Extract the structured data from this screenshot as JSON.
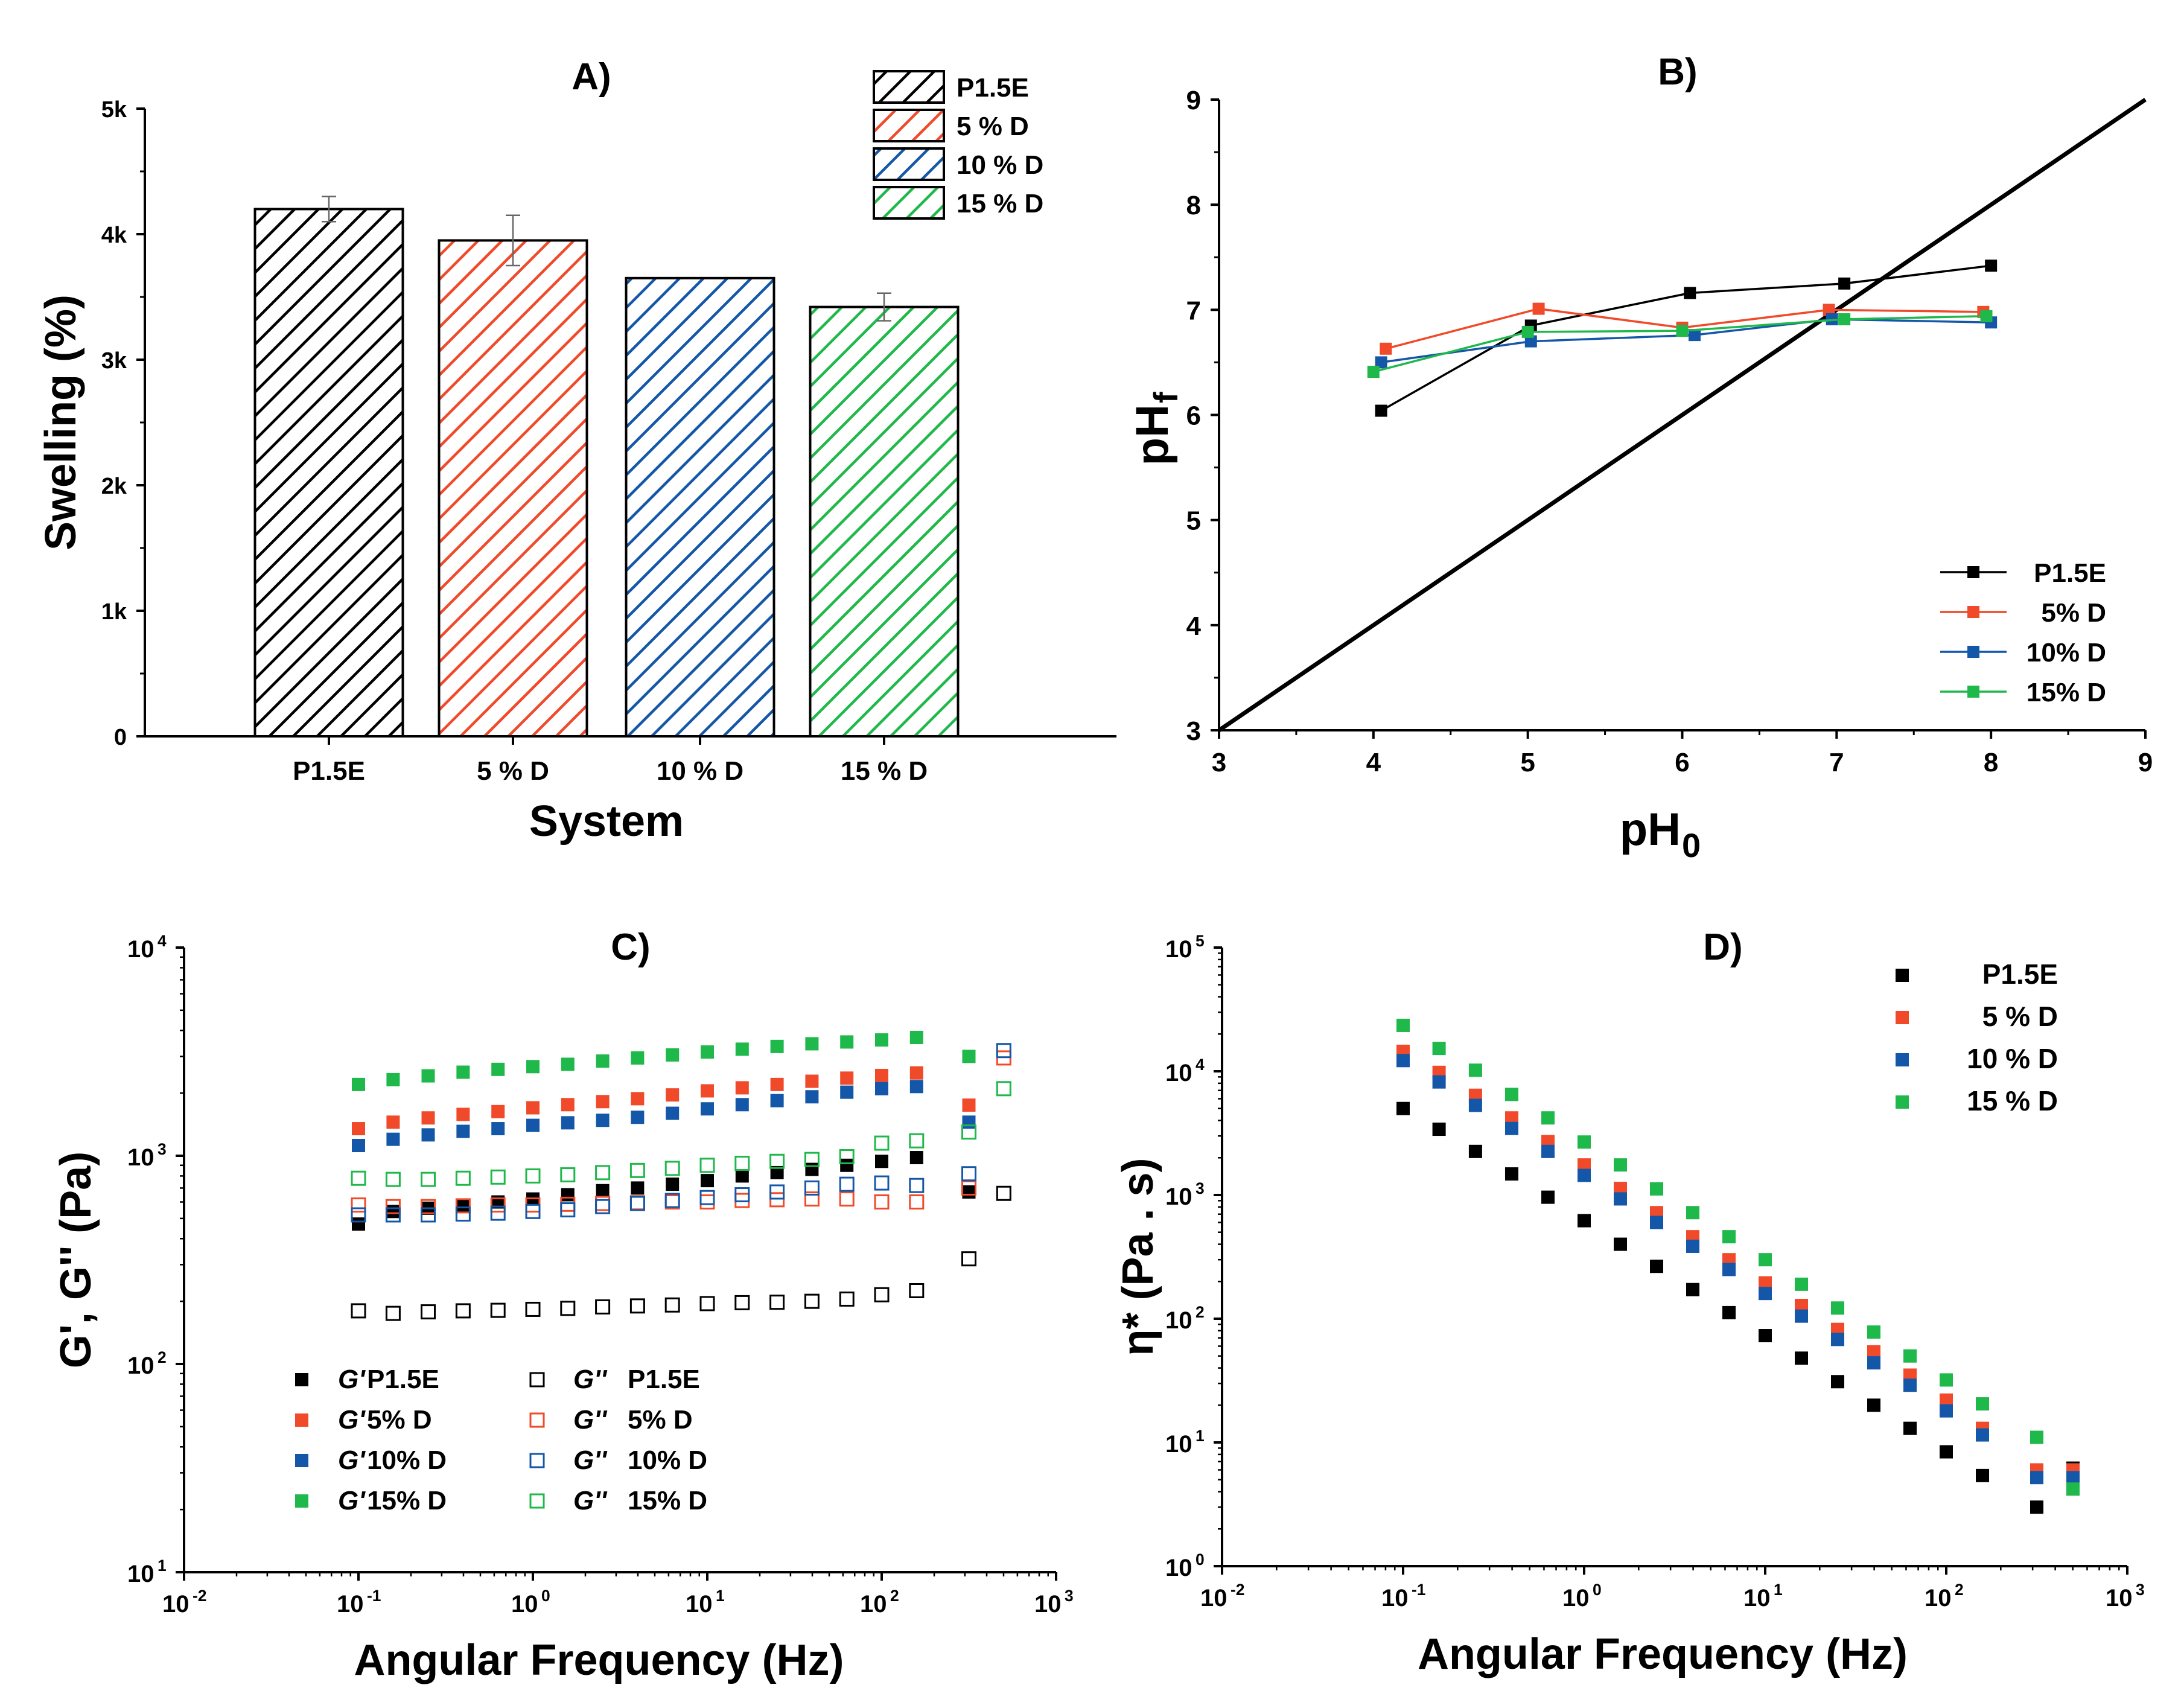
{
  "colors": {
    "black": "#000000",
    "red": "#f04a2a",
    "blue": "#1457a8",
    "green": "#1fb84a"
  },
  "chart_data": [
    {
      "id": "A",
      "type": "bar",
      "title": "A)",
      "xlabel": "System",
      "ylabel": "Swelling (%)",
      "categories": [
        "P1.5E",
        "5 % D",
        "10 % D",
        "15 % D"
      ],
      "values": [
        4200,
        3950,
        3650,
        3420
      ],
      "errors": [
        100,
        200,
        0,
        110
      ],
      "ylim": [
        0,
        5000
      ],
      "yticks": [
        {
          "v": 0,
          "label": "0"
        },
        {
          "v": 1000,
          "label": "1k"
        },
        {
          "v": 2000,
          "label": "2k"
        },
        {
          "v": 3000,
          "label": "3k"
        },
        {
          "v": 4000,
          "label": "4k"
        },
        {
          "v": 5000,
          "label": "5k"
        }
      ],
      "legend": [
        "P1.5E",
        "5 % D",
        "10 % D",
        "15 % D"
      ],
      "legend_position": "top-right",
      "fill": "hatched",
      "colors": [
        "#000000",
        "#f04a2a",
        "#1457a8",
        "#1fb84a"
      ]
    },
    {
      "id": "B",
      "type": "line",
      "title": "B)",
      "xlabel_main": "pH",
      "xlabel_sub": "0",
      "ylabel_main": "pH",
      "ylabel_sub": "f",
      "xlim": [
        3,
        9
      ],
      "ylim": [
        3,
        9
      ],
      "xticks": [
        3,
        4,
        5,
        6,
        7,
        8,
        9
      ],
      "yticks": [
        3,
        4,
        5,
        6,
        7,
        8,
        9
      ],
      "reference_line": {
        "x": [
          3,
          9
        ],
        "y": [
          3,
          9
        ]
      },
      "legend_position": "bottom-right",
      "series": [
        {
          "name": "P1.5E",
          "color": "#000000",
          "x": [
            4.05,
            5.02,
            6.05,
            7.05,
            8.0
          ],
          "y": [
            6.04,
            6.85,
            7.16,
            7.25,
            7.42
          ]
        },
        {
          "name": "5% D",
          "color": "#f04a2a",
          "x": [
            4.08,
            5.07,
            6.0,
            6.95,
            7.95
          ],
          "y": [
            6.63,
            7.01,
            6.83,
            7.0,
            6.98
          ]
        },
        {
          "name": "10% D",
          "color": "#1457a8",
          "x": [
            4.05,
            5.02,
            6.08,
            6.97,
            8.0
          ],
          "y": [
            6.5,
            6.7,
            6.76,
            6.91,
            6.88
          ]
        },
        {
          "name": "15% D",
          "color": "#1fb84a",
          "x": [
            4.0,
            5.0,
            6.0,
            7.05,
            7.97
          ],
          "y": [
            6.41,
            6.79,
            6.8,
            6.91,
            6.94
          ]
        }
      ]
    },
    {
      "id": "C",
      "type": "scatter",
      "title": "C)",
      "xlabel": "Angular Frequency (Hz)",
      "ylabel": "G', G'' (Pa)",
      "xscale": "log",
      "yscale": "log",
      "xlim": [
        0.01,
        1000
      ],
      "ylim": [
        10,
        10000
      ],
      "xticks": [
        {
          "v": 0.01,
          "base": "10",
          "exp": "-2"
        },
        {
          "v": 0.1,
          "base": "10",
          "exp": "-1"
        },
        {
          "v": 1,
          "base": "10",
          "exp": "0"
        },
        {
          "v": 10,
          "base": "10",
          "exp": "1"
        },
        {
          "v": 100,
          "base": "10",
          "exp": "2"
        },
        {
          "v": 1000,
          "base": "10",
          "exp": "3"
        }
      ],
      "yticks": [
        {
          "v": 10,
          "base": "10",
          "exp": "1"
        },
        {
          "v": 100,
          "base": "10",
          "exp": "2"
        },
        {
          "v": 1000,
          "base": "10",
          "exp": "3"
        },
        {
          "v": 10000,
          "base": "10",
          "exp": "4"
        }
      ],
      "x": [
        0.1,
        0.158,
        0.251,
        0.398,
        0.631,
        1.0,
        1.585,
        2.512,
        3.981,
        6.31,
        10.0,
        15.85,
        25.12,
        39.81,
        63.1,
        100.0,
        158.5,
        316.2,
        501.2
      ],
      "legend_position": "bottom-left",
      "series": [
        {
          "name": "G' P1.5E",
          "color": "#000000",
          "filled": true,
          "y": [
            470,
            540,
            560,
            580,
            600,
            620,
            650,
            680,
            700,
            730,
            760,
            800,
            830,
            860,
            900,
            940,
            980,
            670,
            null
          ]
        },
        {
          "name": "G' 5% D",
          "color": "#f04a2a",
          "filled": true,
          "y": [
            1350,
            1450,
            1520,
            1580,
            1630,
            1700,
            1760,
            1820,
            1880,
            1960,
            2050,
            2120,
            2200,
            2280,
            2360,
            2430,
            2500,
            1750,
            null
          ]
        },
        {
          "name": "G' 10% D",
          "color": "#1457a8",
          "filled": true,
          "y": [
            1120,
            1200,
            1260,
            1310,
            1350,
            1400,
            1440,
            1480,
            1530,
            1600,
            1680,
            1760,
            1840,
            1920,
            2020,
            2100,
            2150,
            1450,
            null
          ]
        },
        {
          "name": "G' 15% D",
          "color": "#1fb84a",
          "filled": true,
          "y": [
            2200,
            2320,
            2420,
            2520,
            2600,
            2680,
            2750,
            2850,
            2950,
            3050,
            3150,
            3250,
            3350,
            3450,
            3520,
            3600,
            3700,
            3000,
            null
          ]
        },
        {
          "name": "G'' P1.5E",
          "color": "#000000",
          "filled": false,
          "y": [
            180,
            175,
            178,
            180,
            181,
            183,
            185,
            188,
            190,
            192,
            195,
            197,
            198,
            200,
            205,
            215,
            225,
            320,
            660
          ]
        },
        {
          "name": "G'' 5% D",
          "color": "#f04a2a",
          "filled": false,
          "y": [
            580,
            570,
            570,
            575,
            580,
            580,
            585,
            590,
            595,
            600,
            600,
            610,
            615,
            620,
            620,
            600,
            600,
            700,
            2950
          ]
        },
        {
          "name": "G'' 10% D",
          "color": "#1457a8",
          "filled": false,
          "y": [
            520,
            520,
            520,
            525,
            530,
            540,
            550,
            570,
            590,
            610,
            630,
            650,
            670,
            700,
            730,
            740,
            720,
            820,
            3200
          ]
        },
        {
          "name": "G'' 15% D",
          "color": "#1fb84a",
          "filled": false,
          "y": [
            780,
            770,
            770,
            780,
            790,
            800,
            810,
            830,
            850,
            870,
            900,
            920,
            940,
            960,
            990,
            1150,
            1180,
            1300,
            2100
          ]
        }
      ],
      "legend": [
        {
          "series": 0,
          "prefix": "G'",
          "label": "P1.5E"
        },
        {
          "series": 1,
          "prefix": "G'",
          "label": "5% D"
        },
        {
          "series": 2,
          "prefix": "G'",
          "label": "10% D"
        },
        {
          "series": 3,
          "prefix": "G'",
          "label": "15% D"
        },
        {
          "series": 4,
          "prefix": "G''",
          "label": "P1.5E"
        },
        {
          "series": 5,
          "prefix": "G''",
          "label": "5% D"
        },
        {
          "series": 6,
          "prefix": "G''",
          "label": "10% D"
        },
        {
          "series": 7,
          "prefix": "G''",
          "label": "15% D"
        }
      ]
    },
    {
      "id": "D",
      "type": "scatter",
      "title": "D)",
      "xlabel": "Angular Frequency (Hz)",
      "ylabel": "η* (Pa . s)",
      "xscale": "log",
      "yscale": "log",
      "xlim": [
        0.01,
        1000
      ],
      "ylim": [
        1,
        100000
      ],
      "xticks": [
        {
          "v": 0.01,
          "base": "10",
          "exp": "-2"
        },
        {
          "v": 0.1,
          "base": "10",
          "exp": "-1"
        },
        {
          "v": 1,
          "base": "10",
          "exp": "0"
        },
        {
          "v": 10,
          "base": "10",
          "exp": "1"
        },
        {
          "v": 100,
          "base": "10",
          "exp": "2"
        },
        {
          "v": 1000,
          "base": "10",
          "exp": "3"
        }
      ],
      "yticks": [
        {
          "v": 1,
          "base": "10",
          "exp": "0"
        },
        {
          "v": 10,
          "base": "10",
          "exp": "1"
        },
        {
          "v": 100,
          "base": "10",
          "exp": "2"
        },
        {
          "v": 1000,
          "base": "10",
          "exp": "3"
        },
        {
          "v": 10000,
          "base": "10",
          "exp": "4"
        },
        {
          "v": 100000,
          "base": "10",
          "exp": "5"
        }
      ],
      "x": [
        0.1,
        0.158,
        0.251,
        0.398,
        0.631,
        1.0,
        1.585,
        2.512,
        3.981,
        6.31,
        10.0,
        15.85,
        25.12,
        39.81,
        63.1,
        100.0,
        158.5,
        316.2,
        501.2
      ],
      "legend_position": "top-right",
      "series": [
        {
          "name": "P1.5E",
          "color": "#000000",
          "filled": true,
          "y": [
            5000,
            3400,
            2250,
            1480,
            960,
            620,
            400,
            265,
            172,
            112,
            73,
            48,
            31,
            20,
            13,
            8.4,
            5.4,
            3.0,
            6.2
          ]
        },
        {
          "name": "5 % D",
          "color": "#f04a2a",
          "filled": true,
          "y": [
            14500,
            9800,
            6400,
            4200,
            2700,
            1750,
            1130,
            720,
            460,
            300,
            195,
            128,
            82,
            54,
            35,
            22,
            13,
            6.0,
            6.0
          ]
        },
        {
          "name": "10 % D",
          "color": "#1457a8",
          "filled": true,
          "y": [
            12200,
            8200,
            5300,
            3450,
            2250,
            1440,
            930,
            600,
            385,
            250,
            160,
            105,
            68,
            44,
            29,
            18,
            11.5,
            5.2,
            5.2
          ]
        },
        {
          "name": "15 % D",
          "color": "#1fb84a",
          "filled": true,
          "y": [
            23500,
            15300,
            10200,
            6500,
            4200,
            2680,
            1750,
            1120,
            720,
            460,
            300,
            190,
            122,
            78,
            50,
            32,
            20.5,
            11,
            4.2
          ]
        }
      ]
    }
  ]
}
